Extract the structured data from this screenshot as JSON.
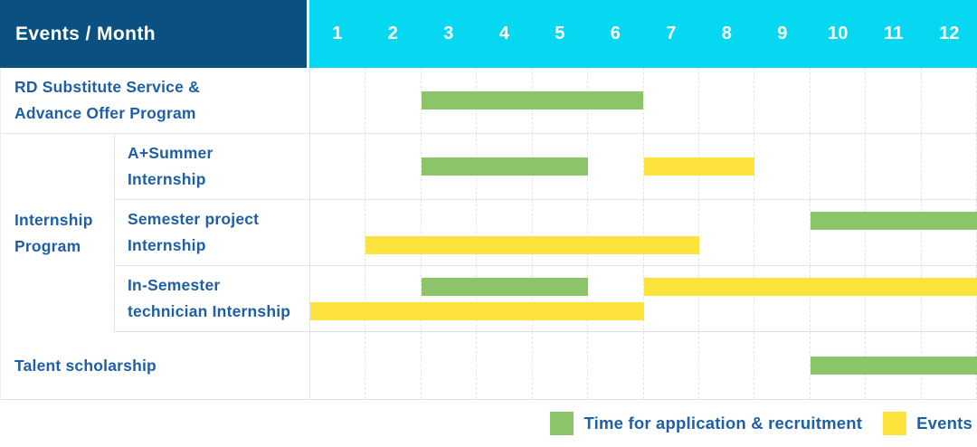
{
  "table": {
    "corner_label": "Events / Month",
    "months": [
      "1",
      "2",
      "3",
      "4",
      "5",
      "6",
      "7",
      "8",
      "9",
      "10",
      "11",
      "12"
    ],
    "row_groups": [
      {
        "group_label_lines": null,
        "rows": [
          {
            "label_lines": [
              "RD Substitute Service &",
              "Advance Offer Program"
            ],
            "bars": [
              {
                "type": "application",
                "start_month": 3,
                "end_month": 6,
                "track": "center"
              }
            ]
          }
        ]
      },
      {
        "group_label_lines": [
          "Internship",
          "Program"
        ],
        "rows": [
          {
            "label_lines": [
              "A+Summer",
              "Internship"
            ],
            "bars": [
              {
                "type": "application",
                "start_month": 3,
                "end_month": 5,
                "track": "center"
              },
              {
                "type": "events",
                "start_month": 7,
                "end_month": 8,
                "track": "center"
              }
            ]
          },
          {
            "label_lines": [
              "Semester project",
              "Internship"
            ],
            "bars": [
              {
                "type": "application",
                "start_month": 10,
                "end_month": 12,
                "track": "top"
              },
              {
                "type": "events",
                "start_month": 2,
                "end_month": 7,
                "track": "bottom"
              }
            ]
          },
          {
            "label_lines": [
              "In-Semester",
              "technician Internship"
            ],
            "bars": [
              {
                "type": "application",
                "start_month": 3,
                "end_month": 5,
                "track": "top"
              },
              {
                "type": "events",
                "start_month": 7,
                "end_month": 12,
                "track": "top"
              },
              {
                "type": "events",
                "start_month": 1,
                "end_month": 6,
                "track": "bottom"
              }
            ]
          }
        ]
      },
      {
        "group_label_lines": null,
        "rows": [
          {
            "label_lines": [
              "Talent scholarship"
            ],
            "bars": [
              {
                "type": "application",
                "start_month": 10,
                "end_month": 12,
                "track": "center"
              }
            ]
          }
        ]
      }
    ]
  },
  "legend": {
    "items": [
      {
        "label": "Time for application & recruitment",
        "type": "application"
      },
      {
        "label": "Events",
        "type": "events"
      }
    ]
  },
  "colors": {
    "application_green": "#8cc46a",
    "events_yellow": "#fde33c",
    "header_navy": "#0a5181",
    "header_cyan": "#05d8f0",
    "label_blue": "#1e5fa7"
  },
  "chart_data": {
    "type": "bar",
    "subtype": "gantt-schedule",
    "title": "Events / Month",
    "xlabel": "Month",
    "ylabel": "Events",
    "x_ticks": [
      1,
      2,
      3,
      4,
      5,
      6,
      7,
      8,
      9,
      10,
      11,
      12
    ],
    "x_range": [
      1,
      12
    ],
    "grid": true,
    "legend_entries": [
      "Time for application & recruitment",
      "Events"
    ],
    "legend_position": "bottom-right",
    "series_colors": {
      "Time for application & recruitment": "#8cc46a",
      "Events": "#fde33c"
    },
    "rows": [
      {
        "category": "RD Substitute Service & Advance Offer Program",
        "group": null,
        "segments": [
          {
            "series": "Time for application & recruitment",
            "start_month": 3,
            "end_month": 6
          }
        ]
      },
      {
        "category": "A+Summer Internship",
        "group": "Internship Program",
        "segments": [
          {
            "series": "Time for application & recruitment",
            "start_month": 3,
            "end_month": 5
          },
          {
            "series": "Events",
            "start_month": 7,
            "end_month": 8
          }
        ]
      },
      {
        "category": "Semester project Internship",
        "group": "Internship Program",
        "segments": [
          {
            "series": "Time for application & recruitment",
            "start_month": 10,
            "end_month": 12
          },
          {
            "series": "Events",
            "start_month": 2,
            "end_month": 7
          }
        ]
      },
      {
        "category": "In-Semester technician Internship",
        "group": "Internship Program",
        "segments": [
          {
            "series": "Time for application & recruitment",
            "start_month": 3,
            "end_month": 5
          },
          {
            "series": "Events",
            "start_month": 7,
            "end_month": 12
          },
          {
            "series": "Events",
            "start_month": 1,
            "end_month": 6
          }
        ]
      },
      {
        "category": "Talent scholarship",
        "group": null,
        "segments": [
          {
            "series": "Time for application & recruitment",
            "start_month": 10,
            "end_month": 12
          }
        ]
      }
    ]
  }
}
